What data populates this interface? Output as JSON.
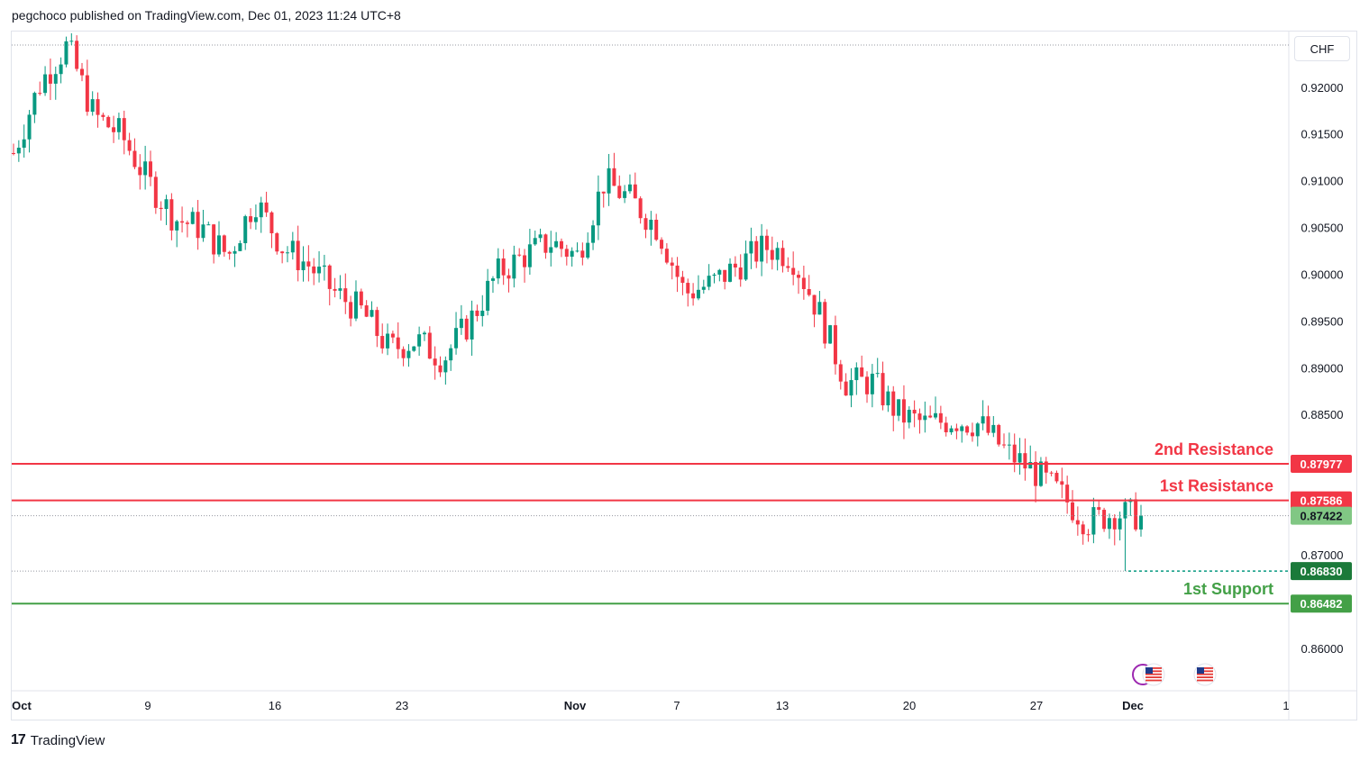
{
  "header": {
    "text": "pegchoco published on TradingView.com, Dec 01, 2023 11:24 UTC+8"
  },
  "footer": {
    "brand": "TradingView",
    "logo": "17"
  },
  "axis": {
    "currency": "CHF"
  },
  "colors": {
    "up": "#089981",
    "down": "#f23645",
    "resistance": "#f23645",
    "support": "#43a047",
    "current": "#81c784",
    "grid": "#e0e3eb"
  },
  "chart_data": {
    "type": "candlestick",
    "ylim": [
      0.8555,
      0.926
    ],
    "y_ticks": [
      "0.92000",
      "0.91500",
      "0.91000",
      "0.90500",
      "0.90000",
      "0.89500",
      "0.89000",
      "0.88500",
      "0.87000",
      "0.86000"
    ],
    "x_ticks": [
      "Oct",
      "9",
      "16",
      "23",
      "Nov",
      "7",
      "13",
      "20",
      "27",
      "Dec",
      "1"
    ],
    "levels": [
      {
        "name": "2nd Resistance",
        "value": "0.87977",
        "kind": "resistance"
      },
      {
        "name": "1st Resistance",
        "value": "0.87586",
        "kind": "resistance"
      },
      {
        "name": "1st Support",
        "value": "0.86482",
        "kind": "support"
      }
    ],
    "current_price": "0.87422",
    "low_marker": "0.86830",
    "path": [
      [
        "Oct",
        0.913
      ],
      [
        "",
        0.9205
      ],
      [
        "",
        0.9245
      ],
      [
        "",
        0.917
      ],
      [
        "",
        0.915
      ],
      [
        "9",
        0.91
      ],
      [
        "",
        0.906
      ],
      [
        "",
        0.905
      ],
      [
        "",
        0.902
      ],
      [
        "16",
        0.908
      ],
      [
        "",
        0.903
      ],
      [
        "",
        0.901
      ],
      [
        "",
        0.898
      ],
      [
        "",
        0.896
      ],
      [
        "23",
        0.892
      ],
      [
        "",
        0.893
      ],
      [
        "",
        0.891
      ],
      [
        "",
        0.895
      ],
      [
        "",
        0.9
      ],
      [
        "",
        0.902
      ],
      [
        "",
        0.9035
      ],
      [
        "",
        0.902
      ],
      [
        "Nov",
        0.91
      ],
      [
        "",
        0.908
      ],
      [
        "",
        0.905
      ],
      [
        "7",
        0.898
      ],
      [
        "",
        0.899
      ],
      [
        "",
        0.901
      ],
      [
        "",
        0.903
      ],
      [
        "13",
        0.902
      ],
      [
        "",
        0.896
      ],
      [
        "",
        0.8885
      ],
      [
        "",
        0.8885
      ],
      [
        "20",
        0.885
      ],
      [
        "",
        0.884
      ],
      [
        "",
        0.8845
      ],
      [
        "",
        0.884
      ],
      [
        "27",
        0.881
      ],
      [
        "",
        0.879
      ],
      [
        "",
        0.8765
      ],
      [
        "",
        0.8735
      ],
      [
        "Dec",
        0.8745
      ],
      [
        "",
        0.8742
      ]
    ],
    "events": [
      "us-flag-event-icon",
      "us-flag-event-icon"
    ]
  }
}
